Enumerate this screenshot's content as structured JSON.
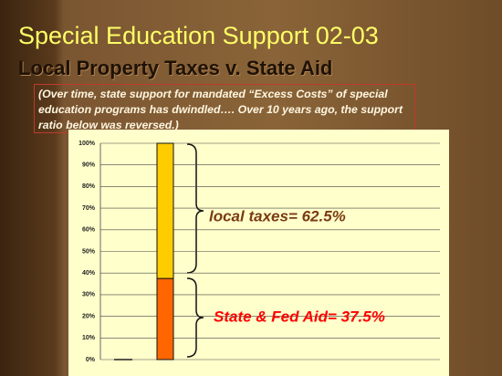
{
  "title": "Special Education Support 02-03",
  "subtitle": "Local Property Taxes v. State Aid",
  "note": "(Over time, state support for mandated “Excess Costs” of special education programs has dwindled…. Over 10 years ago, the support ratio below was reversed.)",
  "chart_data": {
    "type": "stacked-bar",
    "categories": [
      null
    ],
    "series": [
      {
        "color": "#ff6600",
        "values": [
          37.5
        ],
        "value_labels": [
          "State & Fed Aid= 37.5%"
        ]
      },
      {
        "color": "#ffcc00",
        "values": [
          62.5
        ],
        "value_labels": [
          "local taxes=  62.5%"
        ]
      }
    ],
    "ylim": [
      0,
      100
    ],
    "yticks": [
      {
        "value": 0,
        "label": "0%"
      },
      {
        "value": 10,
        "label": "10%"
      },
      {
        "value": 20,
        "label": "20%"
      },
      {
        "value": 30,
        "label": "30%"
      },
      {
        "value": 40,
        "label": "40%"
      },
      {
        "value": 50,
        "label": "50%"
      },
      {
        "value": 60,
        "label": "60%"
      },
      {
        "value": 70,
        "label": "70%"
      },
      {
        "value": 80,
        "label": "80%"
      },
      {
        "value": 90,
        "label": "90%"
      },
      {
        "value": 100,
        "label": "100%"
      }
    ],
    "grid": true
  }
}
